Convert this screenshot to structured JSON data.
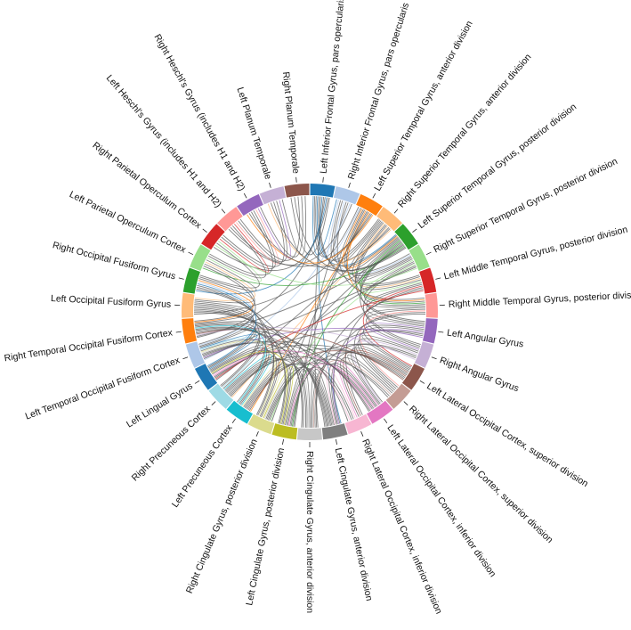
{
  "chart_data": {
    "type": "chord",
    "nodes": [
      {
        "label": "Left Inferior Frontal Gyrus, pars opercularis",
        "color": "#1f77b4"
      },
      {
        "label": "Right Inferior Frontal Gyrus, pars opercularis",
        "color": "#aec7e8"
      },
      {
        "label": "Left Superior Temporal Gyrus, anterior division",
        "color": "#ff7f0e"
      },
      {
        "label": "Right Superior Temporal Gyrus, anterior division",
        "color": "#ffbb78"
      },
      {
        "label": "Left Superior Temporal Gyrus, posterior division",
        "color": "#2ca02c"
      },
      {
        "label": "Right Superior Temporal Gyrus, posterior division",
        "color": "#98df8a"
      },
      {
        "label": "Left Middle Temporal Gyrus, posterior division",
        "color": "#d62728"
      },
      {
        "label": "Right Middle Temporal Gyrus, posterior division",
        "color": "#ff9896"
      },
      {
        "label": "Left Angular Gyrus",
        "color": "#9467bd"
      },
      {
        "label": "Right Angular Gyrus",
        "color": "#c5b0d5"
      },
      {
        "label": "Left Lateral Occipital Cortex, superior division",
        "color": "#8c564b"
      },
      {
        "label": "Right Lateral Occipital Cortex, superior division",
        "color": "#c49c94"
      },
      {
        "label": "Left Lateral Occipital Cortex, inferior division",
        "color": "#e377c2"
      },
      {
        "label": "Right Lateral Occipital Cortex, inferior division",
        "color": "#f7b6d2"
      },
      {
        "label": "Left Cingulate Gyrus, anterior division",
        "color": "#7f7f7f"
      },
      {
        "label": "Right Cingulate Gyrus, anterior division",
        "color": "#c7c7c7"
      },
      {
        "label": "Left Cingulate Gyrus, posterior division",
        "color": "#bcbd22"
      },
      {
        "label": "Right Cingulate Gyrus, posterior division",
        "color": "#dbdb8d"
      },
      {
        "label": "Left Precuneous Cortex",
        "color": "#17becf"
      },
      {
        "label": "Right Precuneous Cortex",
        "color": "#9edae5"
      },
      {
        "label": "Left Lingual Gyrus",
        "color": "#1f77b4"
      },
      {
        "label": "Left Temporal Occipital Fusiform Cortex",
        "color": "#aec7e8"
      },
      {
        "label": "Right Temporal Occipital Fusiform Cortex",
        "color": "#ff7f0e"
      },
      {
        "label": "Left Occipital Fusiform Gyrus",
        "color": "#ffbb78"
      },
      {
        "label": "Right Occipital Fusiform Gyrus",
        "color": "#2ca02c"
      },
      {
        "label": "Left Parietal Operculum Cortex",
        "color": "#98df8a"
      },
      {
        "label": "Right Parietal Operculum Cortex",
        "color": "#d62728"
      },
      {
        "label": "Left Heschl's Gyrus (includes H1 and H2)",
        "color": "#ff9896"
      },
      {
        "label": "Right Heschl's Gyrus (includes H1 and H2)",
        "color": "#9467bd"
      },
      {
        "label": "Left Planum Temporale",
        "color": "#c5b0d5"
      },
      {
        "label": "Right Planum Temporale",
        "color": "#8c564b"
      }
    ],
    "links": [
      [
        0,
        1
      ],
      [
        0,
        2
      ],
      [
        0,
        3
      ],
      [
        0,
        4
      ],
      [
        0,
        5
      ],
      [
        0,
        6
      ],
      [
        0,
        14
      ],
      [
        0,
        15
      ],
      [
        0,
        22
      ],
      [
        0,
        24
      ],
      [
        0,
        26
      ],
      [
        0,
        30
      ],
      [
        1,
        2
      ],
      [
        1,
        3
      ],
      [
        1,
        4
      ],
      [
        1,
        5
      ],
      [
        1,
        7
      ],
      [
        1,
        16
      ],
      [
        1,
        21
      ],
      [
        1,
        27
      ],
      [
        2,
        3
      ],
      [
        2,
        4
      ],
      [
        2,
        5
      ],
      [
        2,
        6
      ],
      [
        2,
        7
      ],
      [
        2,
        16
      ],
      [
        2,
        17
      ],
      [
        2,
        18
      ],
      [
        2,
        23
      ],
      [
        2,
        27
      ],
      [
        2,
        28
      ],
      [
        3,
        4
      ],
      [
        3,
        5
      ],
      [
        3,
        6
      ],
      [
        3,
        7
      ],
      [
        3,
        8
      ],
      [
        3,
        19
      ],
      [
        3,
        20
      ],
      [
        3,
        28
      ],
      [
        3,
        29
      ],
      [
        4,
        5
      ],
      [
        4,
        6
      ],
      [
        4,
        7
      ],
      [
        4,
        8
      ],
      [
        4,
        9
      ],
      [
        4,
        16
      ],
      [
        4,
        18
      ],
      [
        4,
        22
      ],
      [
        4,
        25
      ],
      [
        4,
        29
      ],
      [
        4,
        30
      ],
      [
        5,
        6
      ],
      [
        5,
        7
      ],
      [
        5,
        9
      ],
      [
        5,
        17
      ],
      [
        5,
        19
      ],
      [
        5,
        21
      ],
      [
        5,
        26
      ],
      [
        6,
        7
      ],
      [
        6,
        8
      ],
      [
        6,
        10
      ],
      [
        6,
        13
      ],
      [
        6,
        15
      ],
      [
        6,
        20
      ],
      [
        7,
        8
      ],
      [
        7,
        9
      ],
      [
        7,
        11
      ],
      [
        7,
        12
      ],
      [
        7,
        14
      ],
      [
        8,
        9
      ],
      [
        8,
        10
      ],
      [
        8,
        11
      ],
      [
        8,
        14
      ],
      [
        8,
        16
      ],
      [
        8,
        20
      ],
      [
        8,
        21
      ],
      [
        9,
        10
      ],
      [
        9,
        11
      ],
      [
        9,
        12
      ],
      [
        9,
        15
      ],
      [
        9,
        17
      ],
      [
        9,
        22
      ],
      [
        10,
        11
      ],
      [
        10,
        12
      ],
      [
        10,
        13
      ],
      [
        10,
        14
      ],
      [
        10,
        16
      ],
      [
        10,
        18
      ],
      [
        10,
        19
      ],
      [
        10,
        20
      ],
      [
        10,
        22
      ],
      [
        11,
        12
      ],
      [
        11,
        13
      ],
      [
        11,
        15
      ],
      [
        11,
        17
      ],
      [
        11,
        21
      ],
      [
        12,
        13
      ],
      [
        12,
        14
      ],
      [
        12,
        15
      ],
      [
        12,
        16
      ],
      [
        12,
        17
      ],
      [
        12,
        19
      ],
      [
        12,
        20
      ],
      [
        12,
        21
      ],
      [
        12,
        22
      ],
      [
        13,
        14
      ],
      [
        13,
        16
      ],
      [
        13,
        18
      ],
      [
        13,
        20
      ],
      [
        13,
        23
      ],
      [
        14,
        15
      ],
      [
        14,
        16
      ],
      [
        14,
        17
      ],
      [
        14,
        18
      ],
      [
        14,
        19
      ],
      [
        14,
        20
      ],
      [
        14,
        21
      ],
      [
        14,
        22
      ],
      [
        14,
        23
      ],
      [
        15,
        16
      ],
      [
        15,
        17
      ],
      [
        15,
        18
      ],
      [
        15,
        19
      ],
      [
        15,
        21
      ],
      [
        15,
        22
      ],
      [
        15,
        24
      ],
      [
        16,
        17
      ],
      [
        16,
        18
      ],
      [
        16,
        19
      ],
      [
        16,
        20
      ],
      [
        16,
        22
      ],
      [
        16,
        23
      ],
      [
        17,
        18
      ],
      [
        17,
        19
      ],
      [
        17,
        20
      ],
      [
        17,
        21
      ],
      [
        17,
        23
      ],
      [
        17,
        24
      ],
      [
        18,
        19
      ],
      [
        18,
        20
      ],
      [
        18,
        21
      ],
      [
        18,
        22
      ],
      [
        18,
        24
      ],
      [
        19,
        20
      ],
      [
        19,
        21
      ],
      [
        19,
        22
      ],
      [
        19,
        23
      ],
      [
        20,
        21
      ],
      [
        20,
        22
      ],
      [
        20,
        23
      ],
      [
        20,
        24
      ],
      [
        21,
        22
      ],
      [
        21,
        23
      ],
      [
        21,
        24
      ],
      [
        21,
        25
      ],
      [
        22,
        23
      ],
      [
        22,
        24
      ],
      [
        22,
        25
      ],
      [
        23,
        24
      ],
      [
        23,
        25
      ],
      [
        24,
        25
      ],
      [
        24,
        26
      ],
      [
        25,
        26
      ],
      [
        25,
        27
      ],
      [
        25,
        28
      ],
      [
        26,
        27
      ],
      [
        26,
        28
      ],
      [
        26,
        29
      ],
      [
        27,
        28
      ],
      [
        27,
        29
      ],
      [
        27,
        30
      ],
      [
        28,
        29
      ],
      [
        28,
        30
      ],
      [
        29,
        30
      ]
    ]
  }
}
